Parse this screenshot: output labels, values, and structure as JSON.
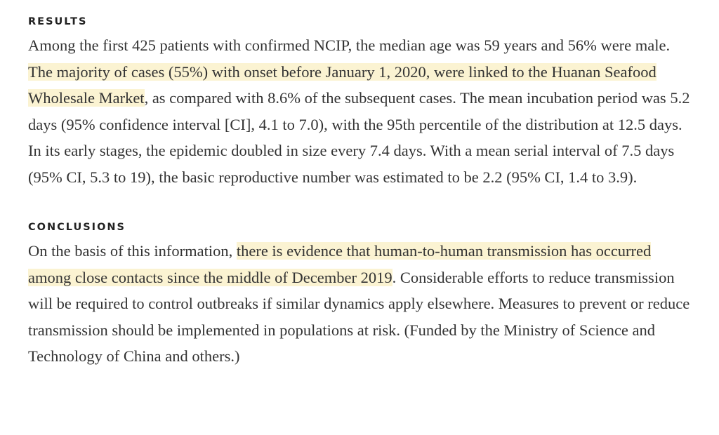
{
  "results": {
    "label": "RESULTS",
    "text_1": "Among the first 425 patients with confirmed NCIP, the median age was 59 years and 56% were male. ",
    "highlight": "The majority of cases (55%) with onset before January 1, 2020, were linked to the Huanan Seafood Wholesale Market",
    "text_2": ", as compared with 8.6% of the subsequent cases. The mean incubation period was 5.2 days (95% confidence interval [CI], 4.1 to 7.0), with the 95th percentile of the distribution at 12.5 days. In its early stages, the epidemic doubled in size every 7.4 days. With a mean serial interval of 7.5 days (95% CI, 5.3 to 19), the basic reproductive number was estimated to be 2.2 (95% CI, 1.4 to 3.9)."
  },
  "conclusions": {
    "label": "CONCLUSIONS",
    "text_1": "On the basis of this information, ",
    "highlight": "there is evidence that human-to-human transmission has occurred among close contacts since the middle of December 2019",
    "text_2": ". Considerable efforts to reduce transmission will be required to control outbreaks if similar dynamics apply elsewhere. Measures to prevent or reduce transmission should be implemented in populations at risk. (Funded by the Ministry of Science and Technology of China and others.)"
  },
  "colors": {
    "highlight": "#fbf3d2",
    "body_text": "#333333",
    "label_text": "#222222"
  }
}
